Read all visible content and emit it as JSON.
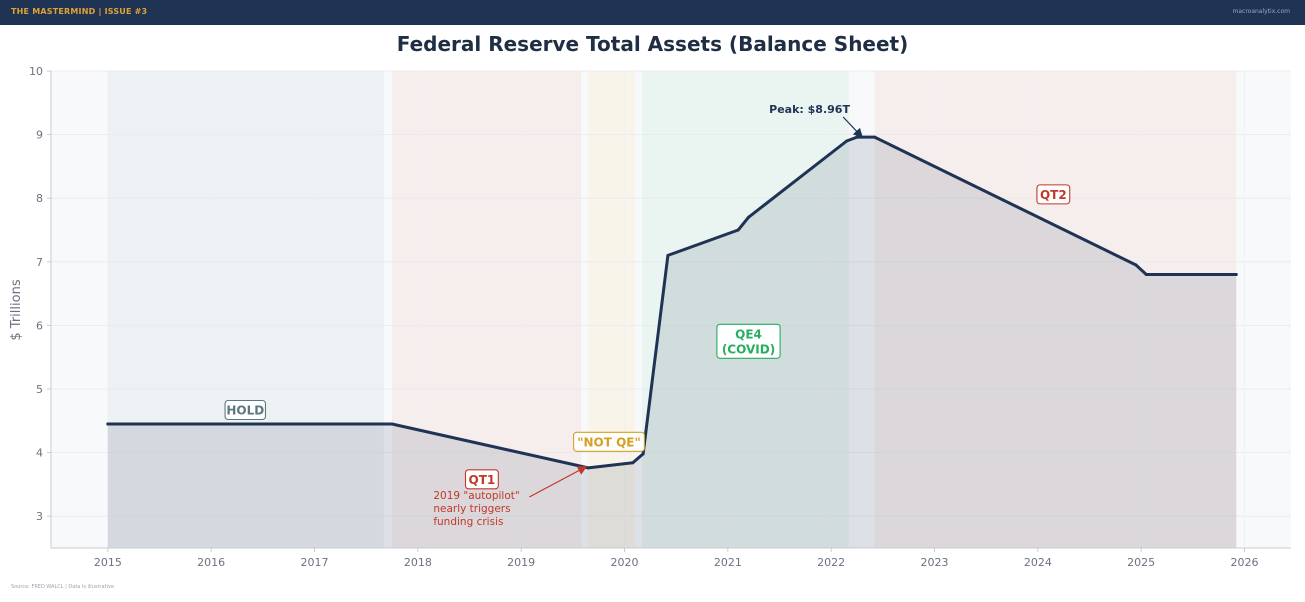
{
  "header": {
    "brand": "THE MASTERMIND  |  ISSUE #3",
    "site": "macroanalytix.com"
  },
  "footer": {
    "source": "Source: FRED WALCL  |  Data is illustrative"
  },
  "colors": {
    "line": "#1f3354",
    "hold": "#5f7680",
    "qt": "#c0392b",
    "notqe": "#d4a020",
    "qe": "#27ae60"
  },
  "chart_data": {
    "type": "line",
    "title": "Federal Reserve Total Assets (Balance Sheet)",
    "xlabel": "",
    "ylabel": "$ Trillions",
    "xlim": [
      2014.45,
      2026.45
    ],
    "ylim": [
      2.5,
      10
    ],
    "x_ticks": [
      2015,
      2016,
      2017,
      2018,
      2019,
      2020,
      2021,
      2022,
      2023,
      2024,
      2025,
      2026
    ],
    "y_ticks": [
      3,
      4,
      5,
      6,
      7,
      8,
      9,
      10
    ],
    "grid": true,
    "series": [
      {
        "name": "Total Assets",
        "x": [
          2015.0,
          2017.75,
          2019.65,
          2020.08,
          2020.18,
          2020.42,
          2021.1,
          2021.2,
          2022.15,
          2022.25,
          2022.42,
          2024.95,
          2025.05,
          2025.92
        ],
        "y": [
          4.45,
          4.45,
          3.76,
          3.84,
          3.98,
          7.1,
          7.5,
          7.7,
          8.9,
          8.96,
          8.96,
          6.95,
          6.8,
          6.8
        ]
      }
    ],
    "regions": [
      {
        "label": "HOLD",
        "start": 2015.0,
        "end": 2017.67,
        "kind": "hold"
      },
      {
        "label": "QT1",
        "start": 2017.75,
        "end": 2019.58,
        "kind": "qt"
      },
      {
        "label": "\"NOT QE\"",
        "start": 2019.65,
        "end": 2020.1,
        "kind": "notqe"
      },
      {
        "label": "QE4\n(COVID)",
        "start": 2020.17,
        "end": 2022.17,
        "kind": "qe"
      },
      {
        "label": "QT2",
        "start": 2022.42,
        "end": 2025.92,
        "kind": "qt"
      }
    ],
    "region_labels": [
      {
        "text": "HOLD",
        "x": 2016.33,
        "y": 4.67,
        "kind": "hold"
      },
      {
        "text": "QT1",
        "x": 2018.62,
        "y": 3.58,
        "kind": "qt"
      },
      {
        "text": "\"NOT QE\"",
        "x": 2019.85,
        "y": 4.17,
        "kind": "notqe"
      },
      {
        "text": "QE4\n(COVID)",
        "x": 2021.2,
        "y": 5.75,
        "kind": "qe"
      },
      {
        "text": "QT2",
        "x": 2024.15,
        "y": 8.06,
        "kind": "qt"
      }
    ],
    "annotations": [
      {
        "text": "Peak: $8.96T",
        "text_x": 2021.4,
        "text_y": 9.34,
        "arrow_x": 2022.3,
        "arrow_y": 8.96,
        "kind": "peak"
      },
      {
        "text": "2019 \"autopilot\"\nnearly triggers\nfunding crisis",
        "text_x": 2018.15,
        "text_y": 3.27,
        "arrow_x": 2019.63,
        "arrow_y": 3.78,
        "kind": "qt"
      }
    ]
  }
}
